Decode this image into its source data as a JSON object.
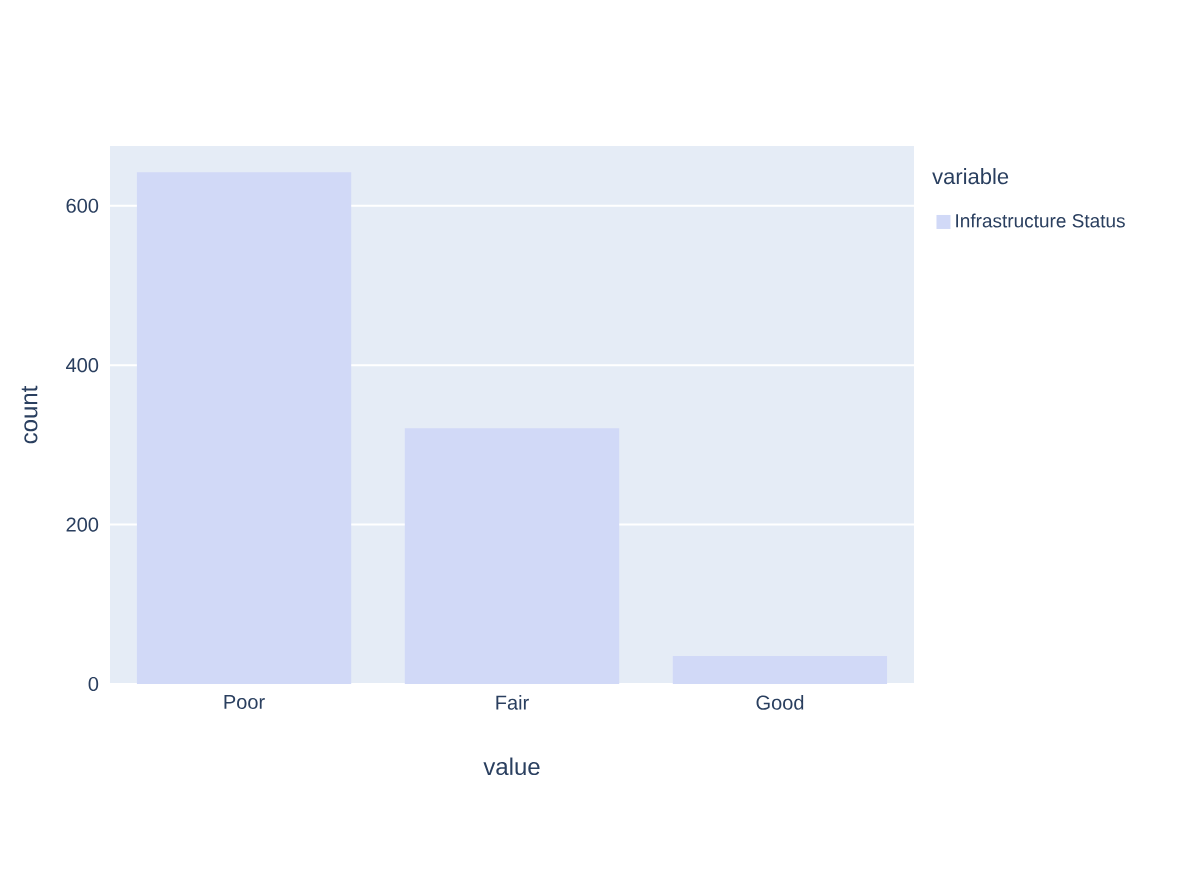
{
  "chart_data": {
    "type": "bar",
    "categories": [
      "Poor",
      "Fair",
      "Good"
    ],
    "series": [
      {
        "name": "Infrastructure Status",
        "color": "#d1d9f7",
        "values": [
          642,
          321,
          35
        ]
      }
    ],
    "xlabel": "value",
    "ylabel": "count",
    "legend_title": "variable",
    "ylim": [
      0,
      675
    ],
    "yticks": [
      0,
      200,
      400,
      600
    ],
    "grid": "y",
    "legend": "top right"
  }
}
